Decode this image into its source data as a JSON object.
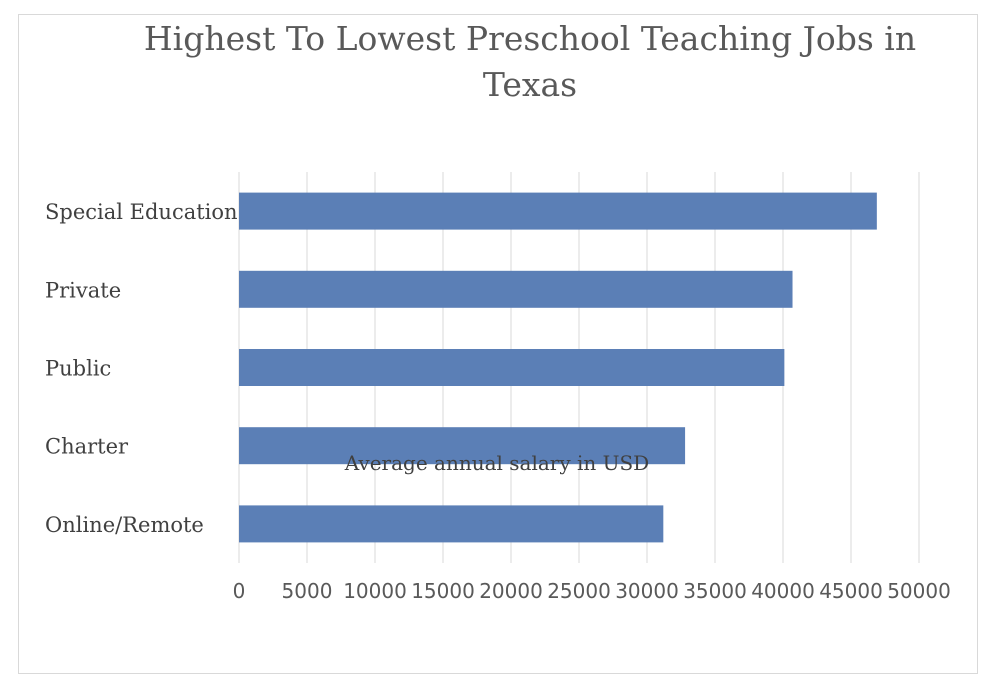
{
  "chart_data": {
    "type": "bar",
    "orientation": "horizontal",
    "title": "Highest To Lowest Preschool Teaching Jobs in Texas",
    "categories": [
      "Special Education",
      "Private",
      "Public",
      "Charter",
      "Online/Remote"
    ],
    "series": [
      {
        "values": [
          46900,
          40700,
          40100,
          32800,
          31200
        ],
        "color": "#5b7fb6"
      }
    ],
    "xlabel": "Average annual salary in USD",
    "ylabel": "",
    "xlim": [
      0,
      50000
    ],
    "xticks": [
      0,
      5000,
      10000,
      15000,
      20000,
      25000,
      30000,
      35000,
      40000,
      45000,
      50000
    ],
    "grid": "vertical",
    "legend": "none",
    "colors": {
      "bar": "#5b7fb6",
      "grid": "#d9d9d9",
      "text": "#595959"
    }
  }
}
